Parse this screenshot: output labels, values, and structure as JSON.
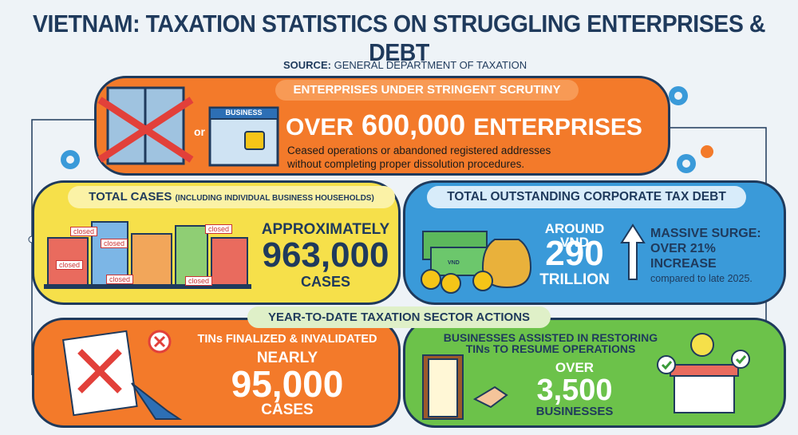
{
  "title": "VIETNAM: TAXATION STATISTICS ON STRUGGLING ENTERPRISES & DEBT",
  "source": {
    "label": "SOURCE:",
    "text": "GENERAL DEPARTMENT OF TAXATION"
  },
  "scrutiny": {
    "heading": "ENTERPRISES UNDER STRINGENT SCRUTINY",
    "or": "or",
    "sign": "BUSINESS",
    "prefix": "OVER",
    "number": "600,000",
    "suffix": "ENTERPRISES",
    "description": "Ceased operations or abandoned registered addresses without completing proper dissolution procedures."
  },
  "total_cases": {
    "heading": "TOTAL CASES",
    "heading_note": "(INCLUDING INDIVIDUAL BUSINESS HOUSEHOLDS)",
    "sign": "closed",
    "lead": "APPROXIMATELY",
    "number": "963,000",
    "unit": "CASES"
  },
  "tax_debt": {
    "heading": "TOTAL OUTSTANDING CORPORATE TAX DEBT",
    "coin": "VND",
    "lead": "AROUND VND",
    "number": "290",
    "unit": "TRILLION",
    "surge_title": "MASSIVE SURGE:",
    "surge_value": "OVER 21%",
    "surge_word": "INCREASE",
    "surge_note": "compared to late 2025."
  },
  "actions": {
    "heading": "YEAR-TO-DATE TAXATION SECTOR ACTIONS",
    "left": {
      "title": "TINs FINALIZED & INVALIDATED",
      "lead": "NEARLY",
      "number": "95,000",
      "unit": "CASES"
    },
    "right": {
      "title": "BUSINESSES ASSISTED IN RESTORING TINs TO RESUME OPERATIONS",
      "lead": "OVER",
      "number": "3,500",
      "unit": "BUSINESSES"
    }
  }
}
